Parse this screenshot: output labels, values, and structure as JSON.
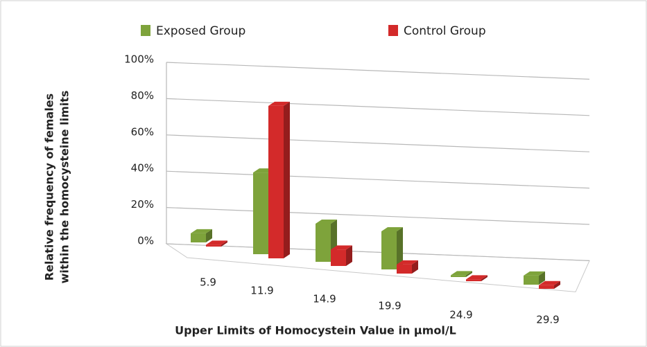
{
  "chart_data": {
    "type": "bar3d",
    "categories": [
      "5.9",
      "11.9",
      "14.9",
      "19.9",
      "24.9",
      "29.9"
    ],
    "series": [
      {
        "name": "Exposed Group",
        "color": "#7ea33b",
        "values": [
          5,
          45,
          21,
          21,
          1,
          5
        ]
      },
      {
        "name": "Control Group",
        "color": "#d32a2a",
        "values": [
          1,
          84,
          9,
          5,
          1,
          2
        ]
      }
    ],
    "ylim": [
      0,
      100
    ],
    "yticks": [
      {
        "value": 0,
        "label": "0%"
      },
      {
        "value": 20,
        "label": "20%"
      },
      {
        "value": 40,
        "label": "40%"
      },
      {
        "value": 60,
        "label": "60%"
      },
      {
        "value": 80,
        "label": "80%"
      },
      {
        "value": 100,
        "label": "100%"
      }
    ],
    "ylabel": [
      "Relative frequency of females",
      "within the homocysteine limits"
    ],
    "xlabel": "Upper Limits of Homocystein Value in µmol/L",
    "grid": true
  }
}
